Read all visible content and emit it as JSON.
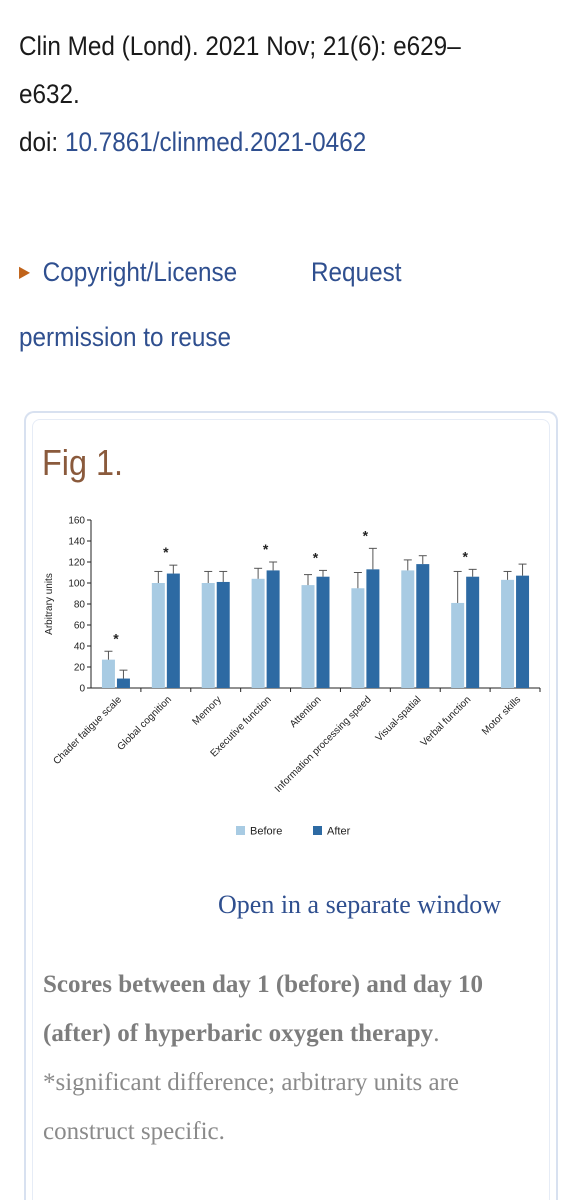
{
  "citation": {
    "line1": "Clin Med (Lond). 2021 Nov; 21(6): e629–",
    "line2": "e632.",
    "doi_label": "doi: ",
    "doi_value": "10.7861/clinmed.2021-0462"
  },
  "license": {
    "copyright_label": "Copyright/License",
    "request_label": "Request",
    "permission_label": "permission to reuse"
  },
  "figure": {
    "title": "Fig 1.",
    "open_link": "Open in a separate window",
    "caption_bold": "Scores between day 1 (before) and day 10 (after) of hyperbaric oxygen therapy",
    "caption_rest": ". *significant difference; arbitrary units are construct specific."
  },
  "colors": {
    "before": "#a8cbe3",
    "after": "#2d6aa3",
    "link": "#2f4f8f",
    "fig_title": "#8a5a3c"
  },
  "chart_data": {
    "type": "bar",
    "title": "",
    "xlabel": "",
    "ylabel": "Arbitrary units",
    "ylim": [
      0,
      160
    ],
    "yticks": [
      0,
      20,
      40,
      60,
      80,
      100,
      120,
      140,
      160
    ],
    "categories": [
      "Chader fatigue scale",
      "Global cognition",
      "Memory",
      "Executive function",
      "Attention",
      "Information processing speed",
      "Visual-spatial",
      "Verbal function",
      "Motor skills"
    ],
    "series": [
      {
        "name": "Before",
        "values": [
          27,
          100,
          100,
          104,
          98,
          95,
          112,
          81,
          103
        ],
        "errors": [
          8,
          11,
          11,
          10,
          10,
          15,
          10,
          30,
          8
        ]
      },
      {
        "name": "After",
        "values": [
          9,
          109,
          101,
          112,
          106,
          113,
          118,
          106,
          107
        ],
        "errors": [
          8,
          8,
          10,
          8,
          6,
          20,
          8,
          7,
          11
        ]
      }
    ],
    "significant": [
      true,
      true,
      false,
      true,
      true,
      true,
      false,
      true,
      false
    ],
    "significance_marker": "*",
    "legend_position": "bottom-center",
    "grid": false
  }
}
